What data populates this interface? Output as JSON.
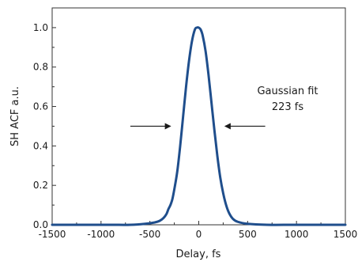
{
  "chart_data": {
    "type": "line",
    "title": "",
    "xlabel": "Delay, fs",
    "ylabel": "SH ACF a.u.",
    "xlim": [
      -1500,
      1500
    ],
    "ylim": [
      0,
      1.1
    ],
    "xticks": [
      -1500,
      -1000,
      -500,
      0,
      500,
      1000,
      1500
    ],
    "xtick_labels": [
      "-1500",
      "-1000",
      "-500",
      "0",
      "500",
      "1000",
      "1500"
    ],
    "yticks": [
      0.0,
      0.2,
      0.4,
      0.6,
      0.8,
      1.0
    ],
    "ytick_labels": [
      "0.0",
      "0.2",
      "0.4",
      "0.6",
      "0.8",
      "1.0"
    ],
    "grid": false,
    "line_color": "#1f4e8c",
    "series": [
      {
        "x": [
          -1500,
          -1200,
          -900,
          -700,
          -550,
          -450,
          -400,
          -360,
          -330,
          -310,
          -290,
          -270,
          -250,
          -220,
          -190,
          -160,
          -130,
          -100,
          -70,
          -40,
          -20,
          0,
          20,
          40,
          70,
          100,
          130,
          160,
          190,
          220,
          250,
          280,
          310,
          350,
          400,
          500,
          700,
          1000,
          1500
        ],
        "y": [
          0.0,
          0.0,
          0.0,
          0.0,
          0.005,
          0.012,
          0.02,
          0.035,
          0.055,
          0.08,
          0.1,
          0.13,
          0.18,
          0.27,
          0.4,
          0.55,
          0.7,
          0.83,
          0.93,
          0.99,
          1.0,
          1.0,
          0.99,
          0.96,
          0.88,
          0.76,
          0.62,
          0.48,
          0.35,
          0.24,
          0.16,
          0.1,
          0.06,
          0.03,
          0.015,
          0.005,
          0.0,
          0.0,
          0.0
        ]
      }
    ],
    "annotations": {
      "text_line1": "Gaussian fit",
      "text_line2": "223 fs",
      "arrow_y": 0.5,
      "left_arrow_x": [
        -700,
        -290
      ],
      "right_arrow_x": [
        680,
        270
      ]
    }
  }
}
